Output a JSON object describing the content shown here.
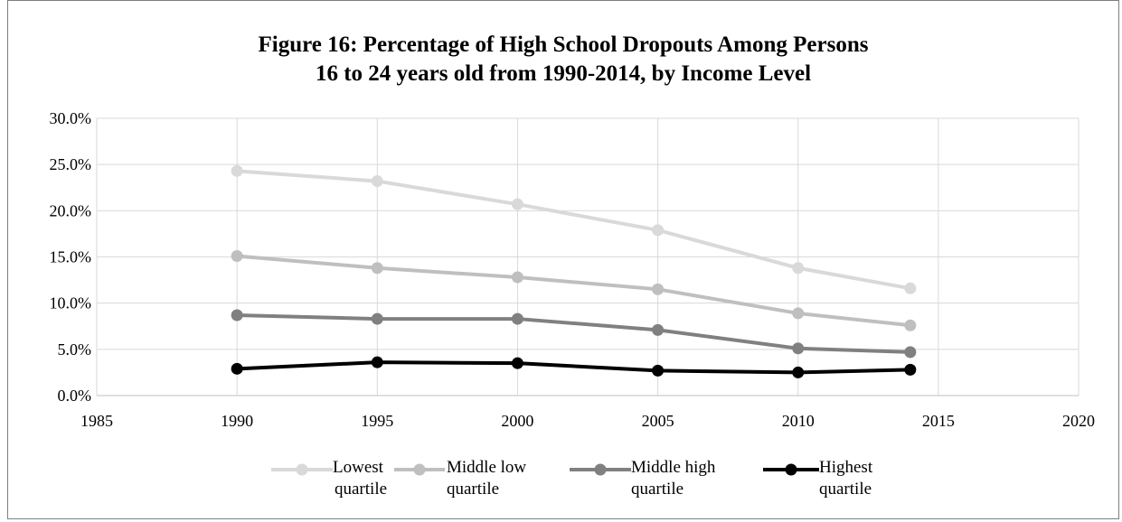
{
  "chart_data": {
    "type": "line",
    "title_lines": [
      "Figure 16: Percentage of High School Dropouts Among Persons",
      "16 to 24 years old from 1990-2014, by Income Level"
    ],
    "x_ticks": [
      "1985",
      "1990",
      "1995",
      "2000",
      "2005",
      "2010",
      "2015",
      "2020"
    ],
    "y_ticks": [
      "0.0%",
      "5.0%",
      "10.0%",
      "15.0%",
      "20.0%",
      "25.0%",
      "30.0%"
    ],
    "xlim": [
      1985,
      2020
    ],
    "ylim": [
      0,
      30
    ],
    "grid": "vertical and horizontal",
    "legend_position": "bottom",
    "x": [
      1990,
      1995,
      2000,
      2005,
      2010,
      2014
    ],
    "series": [
      {
        "legend_lines": [
          "Lowest",
          "quartile"
        ],
        "color": "#d9d9d9",
        "values": [
          24.3,
          23.2,
          20.7,
          17.9,
          13.8,
          11.6
        ]
      },
      {
        "legend_lines": [
          "Middle low",
          "quartile"
        ],
        "color": "#bfbfbf",
        "values": [
          15.1,
          13.8,
          12.8,
          11.5,
          8.9,
          7.6
        ]
      },
      {
        "legend_lines": [
          "Middle high",
          "quartile"
        ],
        "color": "#808080",
        "values": [
          8.7,
          8.3,
          8.3,
          7.1,
          5.1,
          4.7
        ]
      },
      {
        "legend_lines": [
          "Highest",
          "quartile"
        ],
        "color": "#000000",
        "values": [
          2.9,
          3.6,
          3.5,
          2.7,
          2.5,
          2.8
        ]
      }
    ]
  }
}
